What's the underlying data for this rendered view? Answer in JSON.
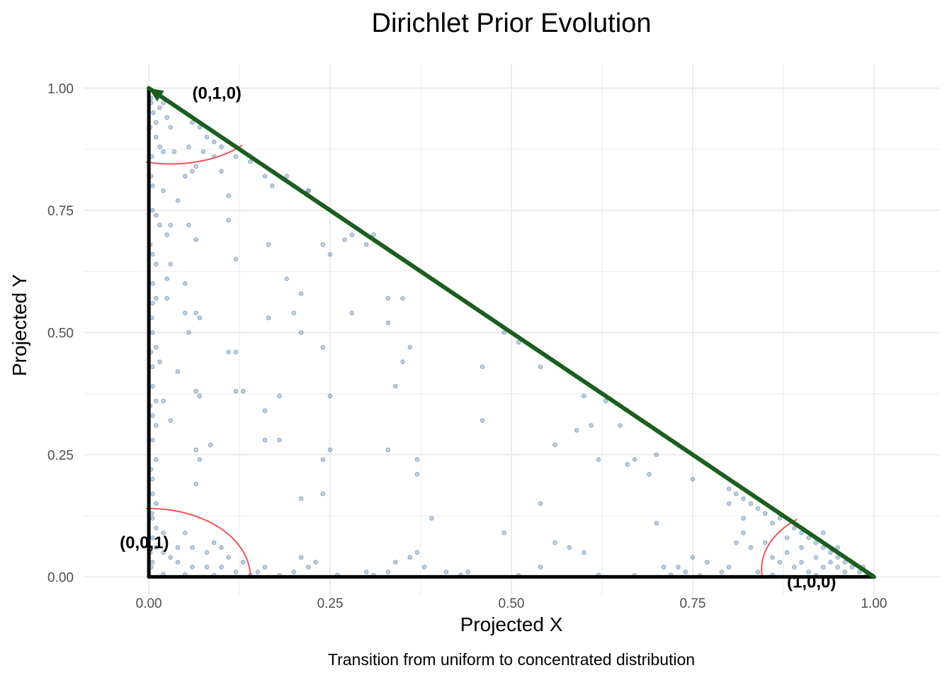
{
  "chart_data": {
    "type": "scatter",
    "title": "Dirichlet Prior Evolution",
    "xlabel": "Projected X",
    "ylabel": "Projected Y",
    "caption": "Transition from uniform to concentrated distribution",
    "xlim": [
      -0.09,
      1.09
    ],
    "ylim": [
      -0.04,
      1.05
    ],
    "x_ticks": [
      0,
      0.25,
      0.5,
      0.75,
      1
    ],
    "x_tick_labels": [
      "0.00",
      "0.25",
      "0.50",
      "0.75",
      "1.00"
    ],
    "y_ticks": [
      0,
      0.25,
      0.5,
      0.75,
      1
    ],
    "y_tick_labels": [
      "0.00",
      "0.25",
      "0.50",
      "0.75",
      "1.00"
    ],
    "colors": {
      "points": "#4a78a8",
      "ellipse": "#f0545b",
      "hypotenuse": "#1b5e20",
      "edges": "#000000",
      "grid": "#ebebeb"
    },
    "vertex_labels": [
      {
        "text": "(0,1,0)",
        "x": 0.06,
        "y": 0.99
      },
      {
        "text": "(0,0,1)",
        "x": -0.04,
        "y": 0.07
      },
      {
        "text": "(1,0,0)",
        "x": 0.88,
        "y": -0.01
      }
    ],
    "ellipses": [
      {
        "name": "top-vertex",
        "cx": 0.03,
        "cy": 0.955,
        "rx": 0.13,
        "ry": 0.11
      },
      {
        "name": "bottom-left-vertex",
        "cx": 0.0,
        "cy": 0.0,
        "rx": 0.14,
        "ry": 0.14
      },
      {
        "name": "right-vertex",
        "cx": 0.97,
        "cy": 0.015,
        "rx": 0.125,
        "ry": 0.13
      }
    ],
    "simplex_edges": [
      {
        "name": "vertical-edge",
        "from": [
          0,
          0
        ],
        "to": [
          0,
          1
        ]
      },
      {
        "name": "horizontal-edge",
        "from": [
          0,
          0
        ],
        "to": [
          1,
          0
        ]
      }
    ],
    "trajectory": {
      "name": "hypotenuse-arrow",
      "from": [
        1,
        0
      ],
      "to": [
        0,
        1
      ]
    },
    "points": [
      [
        0.003,
        0.98
      ],
      [
        0.006,
        0.95
      ],
      [
        0.01,
        0.93
      ],
      [
        0.015,
        0.96
      ],
      [
        0.02,
        0.97
      ],
      [
        0.025,
        0.94
      ],
      [
        0.03,
        0.92
      ],
      [
        0.04,
        0.96
      ],
      [
        0.05,
        0.95
      ],
      [
        0.06,
        0.93
      ],
      [
        0.07,
        0.92
      ],
      [
        0.08,
        0.9
      ],
      [
        0.09,
        0.89
      ],
      [
        0.1,
        0.88
      ],
      [
        0.11,
        0.89
      ],
      [
        0.01,
        0.9
      ],
      [
        0.015,
        0.88
      ],
      [
        0.02,
        0.87
      ],
      [
        0.035,
        0.87
      ],
      [
        0.055,
        0.88
      ],
      [
        0.075,
        0.87
      ],
      [
        0.09,
        0.86
      ],
      [
        0.12,
        0.86
      ],
      [
        0.14,
        0.85
      ],
      [
        0.065,
        0.84
      ],
      [
        0.05,
        0.82
      ],
      [
        0.06,
        0.83
      ],
      [
        0.1,
        0.83
      ],
      [
        0.16,
        0.82
      ],
      [
        0.17,
        0.8
      ],
      [
        0.19,
        0.82
      ],
      [
        0.2,
        0.8
      ],
      [
        0.22,
        0.79
      ],
      [
        0.11,
        0.78
      ],
      [
        0.02,
        0.79
      ],
      [
        0.04,
        0.77
      ],
      [
        0.005,
        0.8
      ],
      [
        0.005,
        0.75
      ],
      [
        0.01,
        0.74
      ],
      [
        0.015,
        0.72
      ],
      [
        0.03,
        0.72
      ],
      [
        0.025,
        0.7
      ],
      [
        0.055,
        0.72
      ],
      [
        0.065,
        0.69
      ],
      [
        0.11,
        0.73
      ],
      [
        0.12,
        0.65
      ],
      [
        0.165,
        0.68
      ],
      [
        0.005,
        0.66
      ],
      [
        0.01,
        0.64
      ],
      [
        0.03,
        0.64
      ],
      [
        0.025,
        0.61
      ],
      [
        0.05,
        0.6
      ],
      [
        0.005,
        0.6
      ],
      [
        0.01,
        0.57
      ],
      [
        0.005,
        0.56
      ],
      [
        0.025,
        0.57
      ],
      [
        0.05,
        0.54
      ],
      [
        0.065,
        0.54
      ],
      [
        0.055,
        0.5
      ],
      [
        0.07,
        0.53
      ],
      [
        0.19,
        0.61
      ],
      [
        0.21,
        0.58
      ],
      [
        0.2,
        0.54
      ],
      [
        0.165,
        0.53
      ],
      [
        0.21,
        0.5
      ],
      [
        0.005,
        0.5
      ],
      [
        0.01,
        0.47
      ],
      [
        0.005,
        0.43
      ],
      [
        0.015,
        0.44
      ],
      [
        0.04,
        0.42
      ],
      [
        0.11,
        0.46
      ],
      [
        0.12,
        0.46
      ],
      [
        0.005,
        0.39
      ],
      [
        0.01,
        0.36
      ],
      [
        0.02,
        0.36
      ],
      [
        0.065,
        0.38
      ],
      [
        0.07,
        0.37
      ],
      [
        0.12,
        0.38
      ],
      [
        0.13,
        0.38
      ],
      [
        0.18,
        0.37
      ],
      [
        0.16,
        0.34
      ],
      [
        0.005,
        0.33
      ],
      [
        0.01,
        0.31
      ],
      [
        0.03,
        0.32
      ],
      [
        0.065,
        0.26
      ],
      [
        0.085,
        0.27
      ],
      [
        0.07,
        0.24
      ],
      [
        0.16,
        0.28
      ],
      [
        0.18,
        0.28
      ],
      [
        0.005,
        0.28
      ],
      [
        0.01,
        0.24
      ],
      [
        0.005,
        0.2
      ],
      [
        0.065,
        0.19
      ],
      [
        0.005,
        0.17
      ],
      [
        0.01,
        0.15
      ],
      [
        0.005,
        0.12
      ],
      [
        0.01,
        0.1
      ],
      [
        0.02,
        0.09
      ],
      [
        0.005,
        0.08
      ],
      [
        0.01,
        0.06
      ],
      [
        0.02,
        0.05
      ],
      [
        0.03,
        0.04
      ],
      [
        0.04,
        0.03
      ],
      [
        0.05,
        0.09
      ],
      [
        0.06,
        0.06
      ],
      [
        0.08,
        0.05
      ],
      [
        0.09,
        0.07
      ],
      [
        0.1,
        0.06
      ],
      [
        0.11,
        0.04
      ],
      [
        0.04,
        0.06
      ],
      [
        0.06,
        0.02
      ],
      [
        0.08,
        0.02
      ],
      [
        0.1,
        0.02
      ],
      [
        0.12,
        0.01
      ],
      [
        0.13,
        0.03
      ],
      [
        0.15,
        0.01
      ],
      [
        0.16,
        0.02
      ],
      [
        0.2,
        0.01
      ],
      [
        0.21,
        0.04
      ],
      [
        0.22,
        0.02
      ],
      [
        0.23,
        0.03
      ],
      [
        0.21,
        0.16
      ],
      [
        0.24,
        0.17
      ],
      [
        0.24,
        0.24
      ],
      [
        0.25,
        0.26
      ],
      [
        0.25,
        0.37
      ],
      [
        0.24,
        0.47
      ],
      [
        0.3,
        0.01
      ],
      [
        0.33,
        0.01
      ],
      [
        0.34,
        0.03
      ],
      [
        0.36,
        0.04
      ],
      [
        0.37,
        0.05
      ],
      [
        0.38,
        0.02
      ],
      [
        0.41,
        0.01
      ],
      [
        0.35,
        0.44
      ],
      [
        0.36,
        0.47
      ],
      [
        0.34,
        0.39
      ],
      [
        0.33,
        0.26
      ],
      [
        0.37,
        0.24
      ],
      [
        0.37,
        0.21
      ],
      [
        0.39,
        0.12
      ],
      [
        0.44,
        0.01
      ],
      [
        0.49,
        0.09
      ],
      [
        0.46,
        0.32
      ],
      [
        0.46,
        0.43
      ],
      [
        0.42,
        0.58
      ],
      [
        0.46,
        0.54
      ],
      [
        0.49,
        0.5
      ],
      [
        0.51,
        0.48
      ],
      [
        0.54,
        0.43
      ],
      [
        0.55,
        0.45
      ],
      [
        0.33,
        0.57
      ],
      [
        0.35,
        0.57
      ],
      [
        0.33,
        0.52
      ],
      [
        0.28,
        0.54
      ],
      [
        0.24,
        0.68
      ],
      [
        0.25,
        0.66
      ],
      [
        0.27,
        0.69
      ],
      [
        0.28,
        0.7
      ],
      [
        0.3,
        0.68
      ],
      [
        0.31,
        0.7
      ],
      [
        0.33,
        0.67
      ],
      [
        0.35,
        0.65
      ],
      [
        0.22,
        0.79
      ],
      [
        0.24,
        0.76
      ],
      [
        0.26,
        0.74
      ],
      [
        0.56,
        0.27
      ],
      [
        0.54,
        0.15
      ],
      [
        0.56,
        0.07
      ],
      [
        0.54,
        0.02
      ],
      [
        0.58,
        0.06
      ],
      [
        0.6,
        0.05
      ],
      [
        0.59,
        0.3
      ],
      [
        0.61,
        0.31
      ],
      [
        0.62,
        0.24
      ],
      [
        0.6,
        0.37
      ],
      [
        0.63,
        0.36
      ],
      [
        0.65,
        0.35
      ],
      [
        0.65,
        0.31
      ],
      [
        0.68,
        0.32
      ],
      [
        0.66,
        0.23
      ],
      [
        0.67,
        0.24
      ],
      [
        0.69,
        0.21
      ],
      [
        0.7,
        0.25
      ],
      [
        0.7,
        0.11
      ],
      [
        0.71,
        0.02
      ],
      [
        0.73,
        0.02
      ],
      [
        0.74,
        0.01
      ],
      [
        0.75,
        0.2
      ],
      [
        0.77,
        0.03
      ],
      [
        0.75,
        0.04
      ],
      [
        0.8,
        0.18
      ],
      [
        0.8,
        0.15
      ],
      [
        0.81,
        0.17
      ],
      [
        0.82,
        0.16
      ],
      [
        0.83,
        0.15
      ],
      [
        0.84,
        0.14
      ],
      [
        0.82,
        0.12
      ],
      [
        0.85,
        0.13
      ],
      [
        0.86,
        0.11
      ],
      [
        0.87,
        0.12
      ],
      [
        0.89,
        0.1
      ],
      [
        0.9,
        0.09
      ],
      [
        0.91,
        0.08
      ],
      [
        0.92,
        0.07
      ],
      [
        0.93,
        0.06
      ],
      [
        0.94,
        0.05
      ],
      [
        0.95,
        0.04
      ],
      [
        0.96,
        0.03
      ],
      [
        0.97,
        0.02
      ],
      [
        0.98,
        0.01
      ],
      [
        0.99,
        0.005
      ],
      [
        0.99,
        0.01
      ],
      [
        0.985,
        0.02
      ],
      [
        0.97,
        0.03
      ],
      [
        0.95,
        0.02
      ],
      [
        0.93,
        0.02
      ],
      [
        0.9,
        0.03
      ],
      [
        0.88,
        0.05
      ],
      [
        0.87,
        0.03
      ],
      [
        0.85,
        0.07
      ],
      [
        0.86,
        0.04
      ],
      [
        0.83,
        0.06
      ],
      [
        0.82,
        0.09
      ],
      [
        0.8,
        0.02
      ],
      [
        0.81,
        0.07
      ],
      [
        0.79,
        0.01
      ],
      [
        0.92,
        0.04
      ],
      [
        0.94,
        0.03
      ],
      [
        0.96,
        0.01
      ],
      [
        0.9,
        0.06
      ],
      [
        0.88,
        0.08
      ],
      [
        0.93,
        0.09
      ],
      [
        0.95,
        0.06
      ],
      [
        0.91,
        0.01
      ],
      [
        0.89,
        0.02
      ],
      [
        0.84,
        0.01
      ],
      [
        0.003,
        0.02
      ],
      [
        0.005,
        0.03
      ],
      [
        0.002,
        0.05
      ],
      [
        0.004,
        0.13
      ],
      [
        0.003,
        0.22
      ],
      [
        0.002,
        0.35
      ],
      [
        0.003,
        0.46
      ],
      [
        0.004,
        0.53
      ],
      [
        0.002,
        0.68
      ],
      [
        0.003,
        0.82
      ],
      [
        0.004,
        0.86
      ],
      [
        0.002,
        0.92
      ],
      [
        0.003,
        0.97
      ],
      [
        0.02,
        0.005
      ],
      [
        0.05,
        0.005
      ],
      [
        0.09,
        0.003
      ],
      [
        0.14,
        0.004
      ],
      [
        0.18,
        0.003
      ],
      [
        0.26,
        0.004
      ],
      [
        0.31,
        0.003
      ],
      [
        0.43,
        0.004
      ],
      [
        0.51,
        0.003
      ],
      [
        0.62,
        0.004
      ],
      [
        0.67,
        0.003
      ],
      [
        0.72,
        0.004
      ],
      [
        0.76,
        0.003
      ],
      [
        0.86,
        0.004
      ],
      [
        0.92,
        0.003
      ]
    ]
  }
}
